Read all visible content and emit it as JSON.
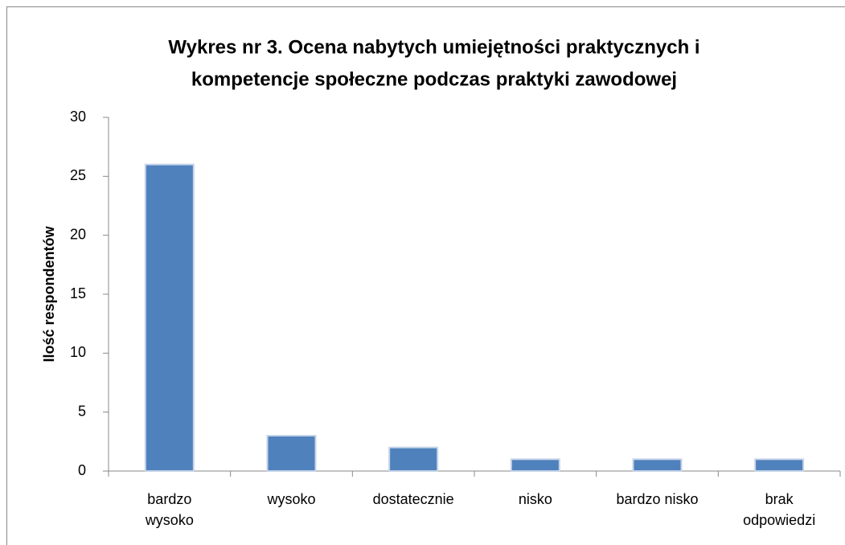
{
  "chart_data": {
    "type": "bar",
    "title": [
      "Wykres nr 3. Ocena nabytych umiejętności praktycznych i",
      "kompetencje społeczne podczas praktyki zawodowej"
    ],
    "y_label": "Ilość respondentów",
    "categories": [
      "bardzo\nwysoko",
      "wysoko",
      "dostatecznie",
      "nisko",
      "bardzo nisko",
      "brak\nodpowiedzi"
    ],
    "values": [
      26,
      3,
      2,
      1,
      1,
      1
    ],
    "color": "#4f81bd",
    "ylim": [
      0,
      30
    ],
    "yticks": [
      0,
      5,
      10,
      15,
      20,
      25,
      30
    ],
    "grid": false
  }
}
